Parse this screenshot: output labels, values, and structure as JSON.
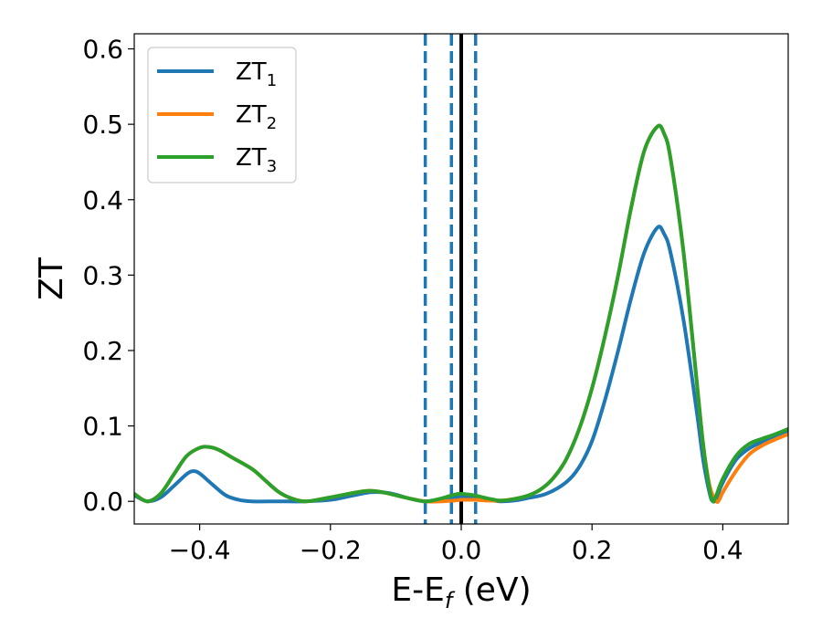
{
  "chart_data": {
    "type": "line",
    "xlabel_main": "E-E",
    "xlabel_sub": "f",
    "xlabel_unit": " (eV)",
    "ylabel": "ZT",
    "xlim": [
      -0.5,
      0.5
    ],
    "ylim": [
      -0.03,
      0.62
    ],
    "x_ticks": [
      -0.4,
      -0.2,
      0.0,
      0.2,
      0.4
    ],
    "x_tick_labels": [
      "−0.4",
      "−0.2",
      "0.0",
      "0.2",
      "0.4"
    ],
    "y_ticks": [
      0.0,
      0.1,
      0.2,
      0.3,
      0.4,
      0.5,
      0.6
    ],
    "y_tick_labels": [
      "0.0",
      "0.1",
      "0.2",
      "0.3",
      "0.4",
      "0.5",
      "0.6"
    ],
    "grid": false,
    "legend_position": "top-left",
    "vlines": [
      {
        "x": -0.055,
        "style": "dashed",
        "color": "#1f77b4"
      },
      {
        "x": -0.015,
        "style": "dashed",
        "color": "#1f77b4"
      },
      {
        "x": 0.0,
        "style": "solid",
        "color": "#000000"
      },
      {
        "x": 0.022,
        "style": "dashed",
        "color": "#1f77b4"
      }
    ],
    "series": [
      {
        "name": "ZT",
        "name_sub": "1",
        "color": "#1f77b4",
        "points": [
          [
            -0.5,
            0.008
          ],
          [
            -0.48,
            0.0
          ],
          [
            -0.46,
            0.005
          ],
          [
            -0.44,
            0.02
          ],
          [
            -0.42,
            0.036
          ],
          [
            -0.41,
            0.04
          ],
          [
            -0.4,
            0.037
          ],
          [
            -0.38,
            0.022
          ],
          [
            -0.36,
            0.008
          ],
          [
            -0.34,
            0.002
          ],
          [
            -0.32,
            0.0
          ],
          [
            -0.28,
            0.0
          ],
          [
            -0.24,
            0.0
          ],
          [
            -0.2,
            0.002
          ],
          [
            -0.17,
            0.007
          ],
          [
            -0.14,
            0.012
          ],
          [
            -0.12,
            0.012
          ],
          [
            -0.1,
            0.009
          ],
          [
            -0.08,
            0.004
          ],
          [
            -0.055,
            0.0
          ],
          [
            -0.03,
            0.002
          ],
          [
            -0.01,
            0.005
          ],
          [
            0.0,
            0.006
          ],
          [
            0.02,
            0.005
          ],
          [
            0.04,
            0.002
          ],
          [
            0.06,
            0.0
          ],
          [
            0.08,
            0.001
          ],
          [
            0.1,
            0.004
          ],
          [
            0.13,
            0.01
          ],
          [
            0.16,
            0.025
          ],
          [
            0.18,
            0.045
          ],
          [
            0.2,
            0.08
          ],
          [
            0.22,
            0.135
          ],
          [
            0.24,
            0.2
          ],
          [
            0.26,
            0.27
          ],
          [
            0.28,
            0.33
          ],
          [
            0.3,
            0.363
          ],
          [
            0.31,
            0.355
          ],
          [
            0.32,
            0.33
          ],
          [
            0.34,
            0.24
          ],
          [
            0.36,
            0.12
          ],
          [
            0.37,
            0.055
          ],
          [
            0.38,
            0.01
          ],
          [
            0.385,
            0.0
          ],
          [
            0.39,
            0.004
          ],
          [
            0.4,
            0.025
          ],
          [
            0.42,
            0.055
          ],
          [
            0.44,
            0.07
          ],
          [
            0.46,
            0.079
          ],
          [
            0.48,
            0.087
          ],
          [
            0.5,
            0.094
          ]
        ]
      },
      {
        "name": "ZT",
        "name_sub": "2",
        "color": "#ff7f0e",
        "points": [
          [
            -0.5,
            0.01
          ],
          [
            -0.48,
            0.0
          ],
          [
            -0.46,
            0.01
          ],
          [
            -0.44,
            0.035
          ],
          [
            -0.42,
            0.06
          ],
          [
            -0.4,
            0.071
          ],
          [
            -0.385,
            0.072
          ],
          [
            -0.37,
            0.068
          ],
          [
            -0.35,
            0.058
          ],
          [
            -0.32,
            0.043
          ],
          [
            -0.3,
            0.028
          ],
          [
            -0.28,
            0.013
          ],
          [
            -0.26,
            0.004
          ],
          [
            -0.24,
            0.0
          ],
          [
            -0.22,
            0.002
          ],
          [
            -0.19,
            0.007
          ],
          [
            -0.16,
            0.012
          ],
          [
            -0.14,
            0.014
          ],
          [
            -0.12,
            0.012
          ],
          [
            -0.1,
            0.008
          ],
          [
            -0.08,
            0.004
          ],
          [
            -0.055,
            0.0
          ],
          [
            -0.03,
            0.0
          ],
          [
            -0.01,
            0.001
          ],
          [
            0.0,
            0.002
          ],
          [
            0.02,
            0.002
          ],
          [
            0.04,
            0.001
          ],
          [
            0.06,
            0.001
          ],
          [
            0.08,
            0.003
          ],
          [
            0.1,
            0.007
          ],
          [
            0.12,
            0.015
          ],
          [
            0.14,
            0.03
          ],
          [
            0.16,
            0.055
          ],
          [
            0.18,
            0.095
          ],
          [
            0.2,
            0.15
          ],
          [
            0.22,
            0.22
          ],
          [
            0.24,
            0.3
          ],
          [
            0.26,
            0.39
          ],
          [
            0.28,
            0.465
          ],
          [
            0.3,
            0.497
          ],
          [
            0.31,
            0.488
          ],
          [
            0.32,
            0.455
          ],
          [
            0.34,
            0.33
          ],
          [
            0.36,
            0.16
          ],
          [
            0.37,
            0.075
          ],
          [
            0.38,
            0.02
          ],
          [
            0.39,
            0.0
          ],
          [
            0.395,
            0.003
          ],
          [
            0.4,
            0.012
          ],
          [
            0.42,
            0.04
          ],
          [
            0.44,
            0.062
          ],
          [
            0.46,
            0.074
          ],
          [
            0.48,
            0.082
          ],
          [
            0.5,
            0.089
          ]
        ]
      },
      {
        "name": "ZT",
        "name_sub": "3",
        "color": "#2ca02c",
        "points": [
          [
            -0.5,
            0.01
          ],
          [
            -0.48,
            0.0
          ],
          [
            -0.46,
            0.01
          ],
          [
            -0.44,
            0.035
          ],
          [
            -0.42,
            0.06
          ],
          [
            -0.4,
            0.071
          ],
          [
            -0.385,
            0.072
          ],
          [
            -0.37,
            0.068
          ],
          [
            -0.35,
            0.058
          ],
          [
            -0.32,
            0.043
          ],
          [
            -0.3,
            0.028
          ],
          [
            -0.28,
            0.013
          ],
          [
            -0.26,
            0.004
          ],
          [
            -0.24,
            0.0
          ],
          [
            -0.22,
            0.002
          ],
          [
            -0.19,
            0.007
          ],
          [
            -0.16,
            0.012
          ],
          [
            -0.14,
            0.014
          ],
          [
            -0.12,
            0.012
          ],
          [
            -0.1,
            0.008
          ],
          [
            -0.08,
            0.004
          ],
          [
            -0.055,
            0.0
          ],
          [
            -0.03,
            0.004
          ],
          [
            -0.01,
            0.009
          ],
          [
            0.0,
            0.01
          ],
          [
            0.02,
            0.008
          ],
          [
            0.04,
            0.004
          ],
          [
            0.06,
            0.001
          ],
          [
            0.08,
            0.003
          ],
          [
            0.1,
            0.007
          ],
          [
            0.12,
            0.015
          ],
          [
            0.14,
            0.03
          ],
          [
            0.16,
            0.055
          ],
          [
            0.18,
            0.095
          ],
          [
            0.2,
            0.15
          ],
          [
            0.22,
            0.22
          ],
          [
            0.24,
            0.3
          ],
          [
            0.26,
            0.39
          ],
          [
            0.28,
            0.465
          ],
          [
            0.3,
            0.497
          ],
          [
            0.31,
            0.488
          ],
          [
            0.32,
            0.455
          ],
          [
            0.34,
            0.33
          ],
          [
            0.36,
            0.16
          ],
          [
            0.37,
            0.075
          ],
          [
            0.38,
            0.015
          ],
          [
            0.385,
            0.0
          ],
          [
            0.39,
            0.008
          ],
          [
            0.4,
            0.03
          ],
          [
            0.42,
            0.06
          ],
          [
            0.44,
            0.076
          ],
          [
            0.46,
            0.083
          ],
          [
            0.48,
            0.089
          ],
          [
            0.5,
            0.096
          ]
        ]
      }
    ]
  }
}
